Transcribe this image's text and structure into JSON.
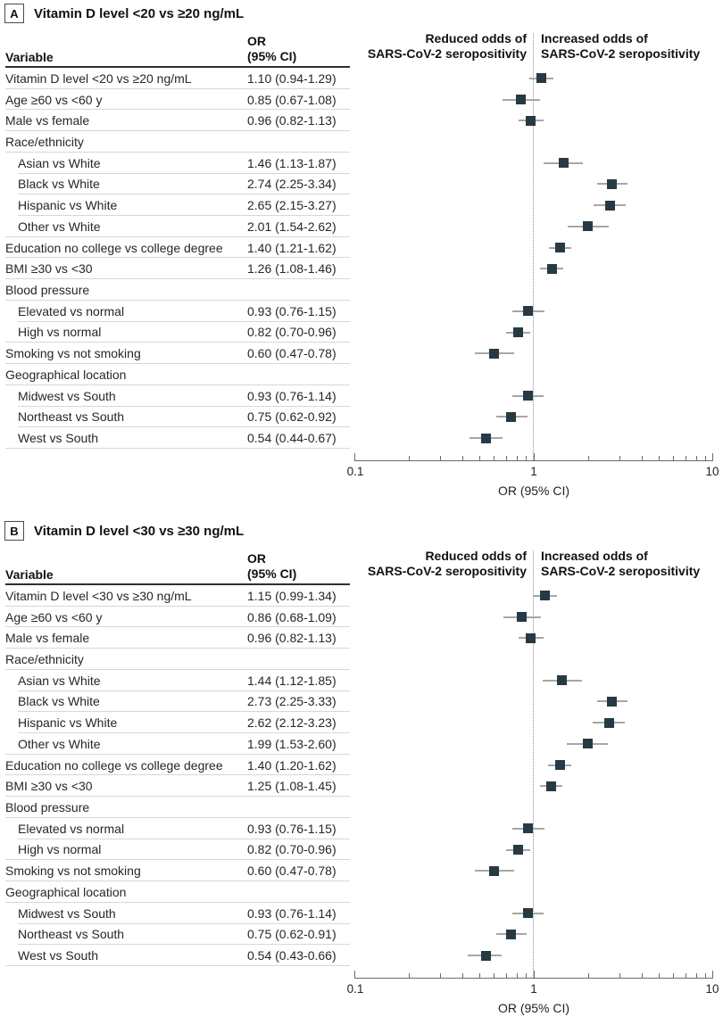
{
  "chart_data": [
    {
      "type": "forest",
      "panel_label": "A",
      "title": "Vitamin D level <20 vs ≥20 ng/mL",
      "column_headers": {
        "variable": "Variable",
        "or": "OR\n(95% CI)"
      },
      "direction_labels": {
        "left": "Reduced odds of\nSARS-CoV-2 seropositivity",
        "right": "Increased odds of\nSARS-CoV-2 seropositivity"
      },
      "axis": {
        "title": "OR (95% CI)",
        "scale": "log10",
        "min": 0.1,
        "max": 10,
        "reference_line": 1,
        "tick_labels": [
          "0.1",
          "1",
          "10"
        ]
      },
      "rows": [
        {
          "variable": "Vitamin D level <20 vs ≥20 ng/mL",
          "or": 1.1,
          "ci": [
            0.94,
            1.29
          ],
          "or_text": "1.10 (0.94-1.29)"
        },
        {
          "variable": "Age ≥60 vs <60 y",
          "or": 0.85,
          "ci": [
            0.67,
            1.08
          ],
          "or_text": "0.85 (0.67-1.08)"
        },
        {
          "variable": "Male vs female",
          "or": 0.96,
          "ci": [
            0.82,
            1.13
          ],
          "or_text": "0.96 (0.82-1.13)"
        },
        {
          "variable": "Race/ethnicity",
          "group": true
        },
        {
          "variable": "Asian vs White",
          "indent": true,
          "or": 1.46,
          "ci": [
            1.13,
            1.87
          ],
          "or_text": "1.46 (1.13-1.87)"
        },
        {
          "variable": "Black vs White",
          "indent": true,
          "or": 2.74,
          "ci": [
            2.25,
            3.34
          ],
          "or_text": "2.74 (2.25-3.34)"
        },
        {
          "variable": "Hispanic vs White",
          "indent": true,
          "or": 2.65,
          "ci": [
            2.15,
            3.27
          ],
          "or_text": "2.65 (2.15-3.27)"
        },
        {
          "variable": "Other vs White",
          "indent": true,
          "or": 2.01,
          "ci": [
            1.54,
            2.62
          ],
          "or_text": "2.01 (1.54-2.62)"
        },
        {
          "variable": "Education no college vs college degree",
          "or": 1.4,
          "ci": [
            1.21,
            1.62
          ],
          "or_text": "1.40 (1.21-1.62)"
        },
        {
          "variable": "BMI ≥30 vs <30",
          "or": 1.26,
          "ci": [
            1.08,
            1.46
          ],
          "or_text": "1.26 (1.08-1.46)"
        },
        {
          "variable": "Blood pressure",
          "group": true
        },
        {
          "variable": "Elevated vs normal",
          "indent": true,
          "or": 0.93,
          "ci": [
            0.76,
            1.15
          ],
          "or_text": "0.93 (0.76-1.15)"
        },
        {
          "variable": "High vs normal",
          "indent": true,
          "or": 0.82,
          "ci": [
            0.7,
            0.96
          ],
          "or_text": "0.82 (0.70-0.96)"
        },
        {
          "variable": "Smoking vs not smoking",
          "or": 0.6,
          "ci": [
            0.47,
            0.78
          ],
          "or_text": "0.60 (0.47-0.78)"
        },
        {
          "variable": "Geographical location",
          "group": true
        },
        {
          "variable": "Midwest vs South",
          "indent": true,
          "or": 0.93,
          "ci": [
            0.76,
            1.14
          ],
          "or_text": "0.93 (0.76-1.14)"
        },
        {
          "variable": "Northeast vs South",
          "indent": true,
          "or": 0.75,
          "ci": [
            0.62,
            0.92
          ],
          "or_text": "0.75 (0.62-0.92)"
        },
        {
          "variable": "West vs South",
          "indent": true,
          "or": 0.54,
          "ci": [
            0.44,
            0.67
          ],
          "or_text": "0.54 (0.44-0.67)"
        }
      ]
    },
    {
      "type": "forest",
      "panel_label": "B",
      "title": "Vitamin D level <30 vs ≥30 ng/mL",
      "column_headers": {
        "variable": "Variable",
        "or": "OR\n(95% CI)"
      },
      "direction_labels": {
        "left": "Reduced odds of\nSARS-CoV-2 seropositivity",
        "right": "Increased odds of\nSARS-CoV-2 seropositivity"
      },
      "axis": {
        "title": "OR (95% CI)",
        "scale": "log10",
        "min": 0.1,
        "max": 10,
        "reference_line": 1,
        "tick_labels": [
          "0.1",
          "1",
          "10"
        ]
      },
      "rows": [
        {
          "variable": "Vitamin D level <30 vs ≥30 ng/mL",
          "or": 1.15,
          "ci": [
            0.99,
            1.34
          ],
          "or_text": "1.15 (0.99-1.34)"
        },
        {
          "variable": "Age ≥60 vs <60 y",
          "or": 0.86,
          "ci": [
            0.68,
            1.09
          ],
          "or_text": "0.86 (0.68-1.09)"
        },
        {
          "variable": "Male vs female",
          "or": 0.96,
          "ci": [
            0.82,
            1.13
          ],
          "or_text": "0.96 (0.82-1.13)"
        },
        {
          "variable": "Race/ethnicity",
          "group": true
        },
        {
          "variable": "Asian vs White",
          "indent": true,
          "or": 1.44,
          "ci": [
            1.12,
            1.85
          ],
          "or_text": "1.44 (1.12-1.85)"
        },
        {
          "variable": "Black vs White",
          "indent": true,
          "or": 2.73,
          "ci": [
            2.25,
            3.33
          ],
          "or_text": "2.73 (2.25-3.33)"
        },
        {
          "variable": "Hispanic vs White",
          "indent": true,
          "or": 2.62,
          "ci": [
            2.12,
            3.23
          ],
          "or_text": "2.62 (2.12-3.23)"
        },
        {
          "variable": "Other vs White",
          "indent": true,
          "or": 1.99,
          "ci": [
            1.53,
            2.6
          ],
          "or_text": "1.99 (1.53-2.60)"
        },
        {
          "variable": "Education no college vs college degree",
          "or": 1.4,
          "ci": [
            1.2,
            1.62
          ],
          "or_text": "1.40 (1.20-1.62)"
        },
        {
          "variable": "BMI ≥30 vs <30",
          "or": 1.25,
          "ci": [
            1.08,
            1.45
          ],
          "or_text": "1.25 (1.08-1.45)"
        },
        {
          "variable": "Blood pressure",
          "group": true
        },
        {
          "variable": "Elevated vs normal",
          "indent": true,
          "or": 0.93,
          "ci": [
            0.76,
            1.15
          ],
          "or_text": "0.93 (0.76-1.15)"
        },
        {
          "variable": "High vs normal",
          "indent": true,
          "or": 0.82,
          "ci": [
            0.7,
            0.96
          ],
          "or_text": "0.82 (0.70-0.96)"
        },
        {
          "variable": "Smoking vs not smoking",
          "or": 0.6,
          "ci": [
            0.47,
            0.78
          ],
          "or_text": "0.60 (0.47-0.78)"
        },
        {
          "variable": "Geographical location",
          "group": true
        },
        {
          "variable": "Midwest vs South",
          "indent": true,
          "or": 0.93,
          "ci": [
            0.76,
            1.14
          ],
          "or_text": "0.93 (0.76-1.14)"
        },
        {
          "variable": "Northeast vs South",
          "indent": true,
          "or": 0.75,
          "ci": [
            0.62,
            0.91
          ],
          "or_text": "0.75 (0.62-0.91)"
        },
        {
          "variable": "West vs South",
          "indent": true,
          "or": 0.54,
          "ci": [
            0.43,
            0.66
          ],
          "or_text": "0.54 (0.43-0.66)"
        }
      ]
    }
  ],
  "style": {
    "marker_color": "#273a44",
    "ci_line_color": "#a6a6a6",
    "row_divider_color": "#ded7c8",
    "axis_color": "#6b6b6b"
  }
}
